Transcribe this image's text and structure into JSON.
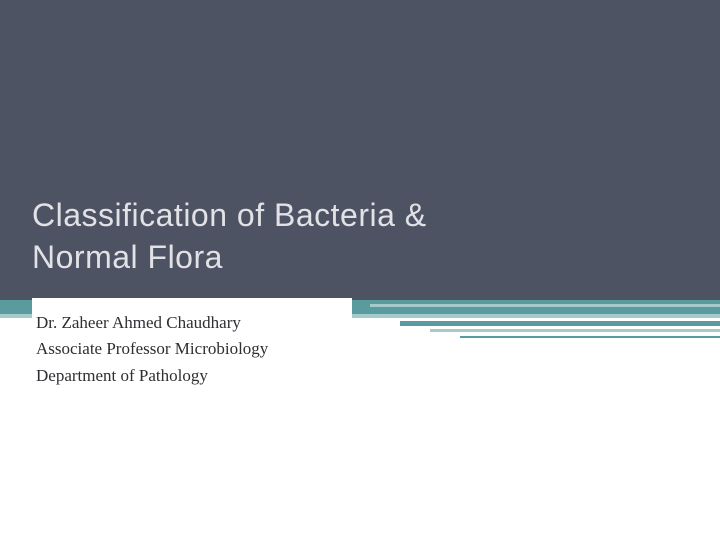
{
  "slide": {
    "title_line1": "Classification of Bacteria &",
    "title_line2": "Normal Flora",
    "subtitle_line1": "Dr. Zaheer Ahmed Chaudhary",
    "subtitle_line2": "Associate Professor Microbiology",
    "subtitle_line3": "Department of Pathology"
  },
  "colors": {
    "top_bg": "#4d5363",
    "title_color": "#e1e1e6",
    "teal_mid": "#5a9b9f",
    "teal_light": "#a5cacb",
    "subtitle_color": "#2e2e33"
  }
}
